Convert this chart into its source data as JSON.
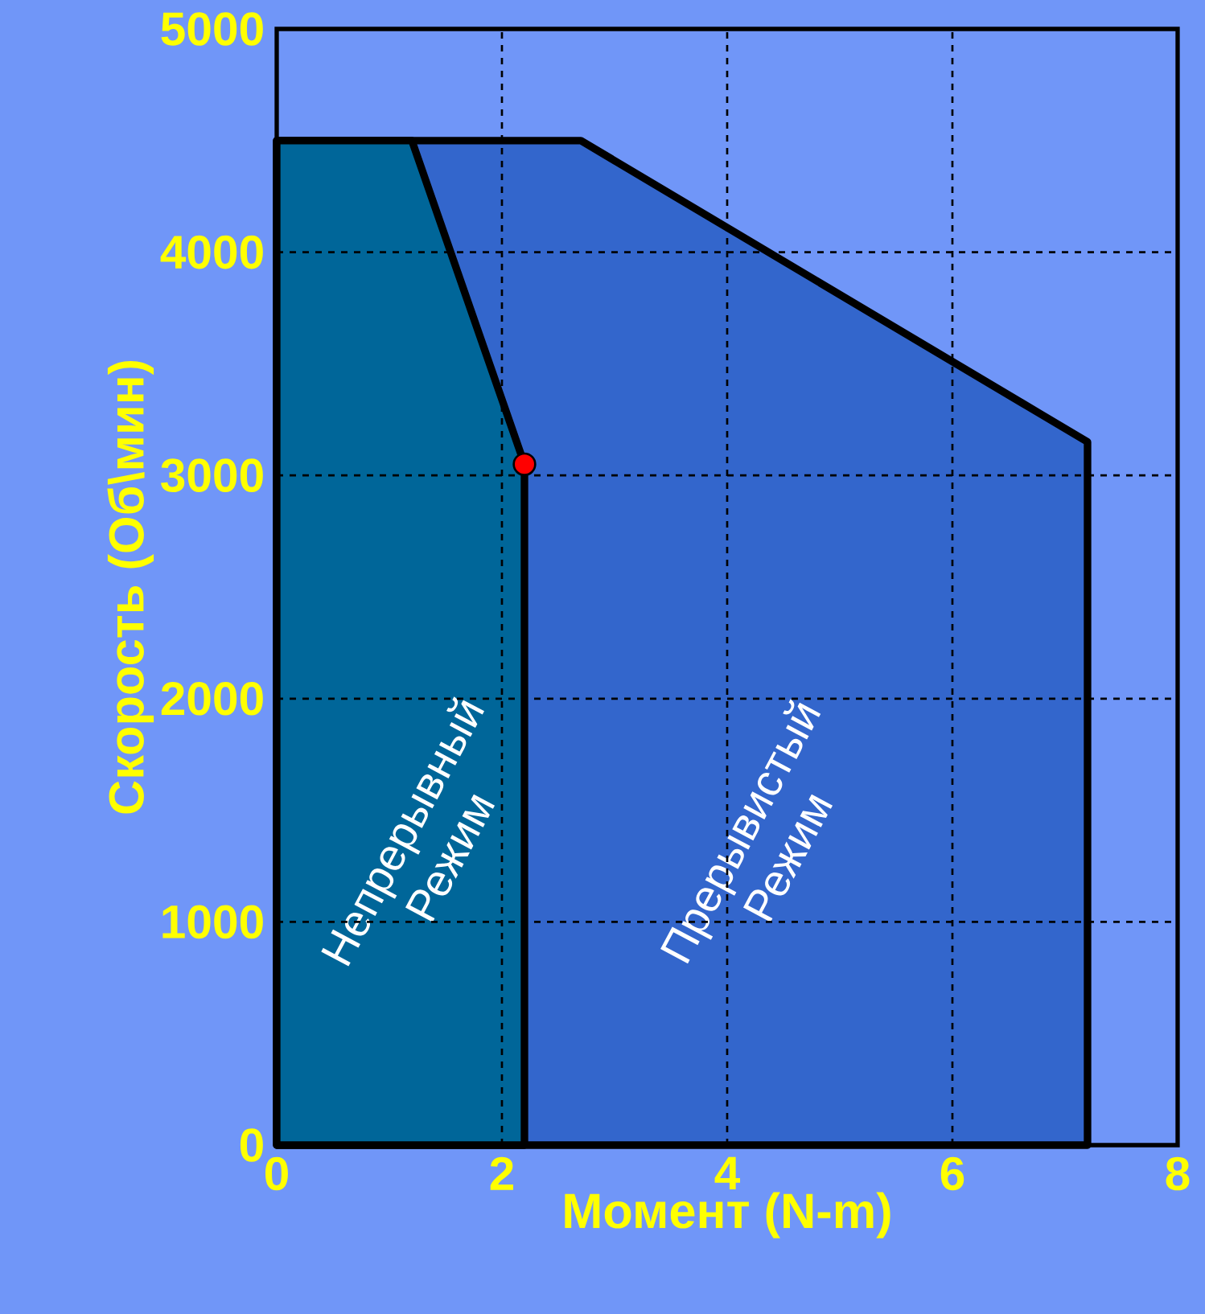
{
  "chart_data": {
    "type": "area",
    "xlabel": "Момент (N-m)",
    "ylabel": "Скорость (Об\\мин)",
    "xlim": [
      0,
      8
    ],
    "ylim": [
      0,
      5000
    ],
    "xticks": [
      0,
      2,
      4,
      6,
      8
    ],
    "yticks": [
      0,
      1000,
      2000,
      3000,
      4000,
      5000
    ],
    "grid": true,
    "series": [
      {
        "name": "Прерывистый Режим",
        "color": "#3366cc",
        "x": [
          0,
          0,
          2.7,
          7.2,
          7.2
        ],
        "values": [
          0,
          4500,
          4500,
          3150,
          0
        ]
      },
      {
        "name": "Непрерывный Режим",
        "color": "#006699",
        "x": [
          0,
          0,
          1.2,
          2.2,
          2.2
        ],
        "values": [
          0,
          4500,
          4500,
          3050,
          0
        ]
      },
      {
        "type": "scatter",
        "color": "#ff0000",
        "x": [
          2.2
        ],
        "values": [
          3050
        ]
      }
    ]
  }
}
